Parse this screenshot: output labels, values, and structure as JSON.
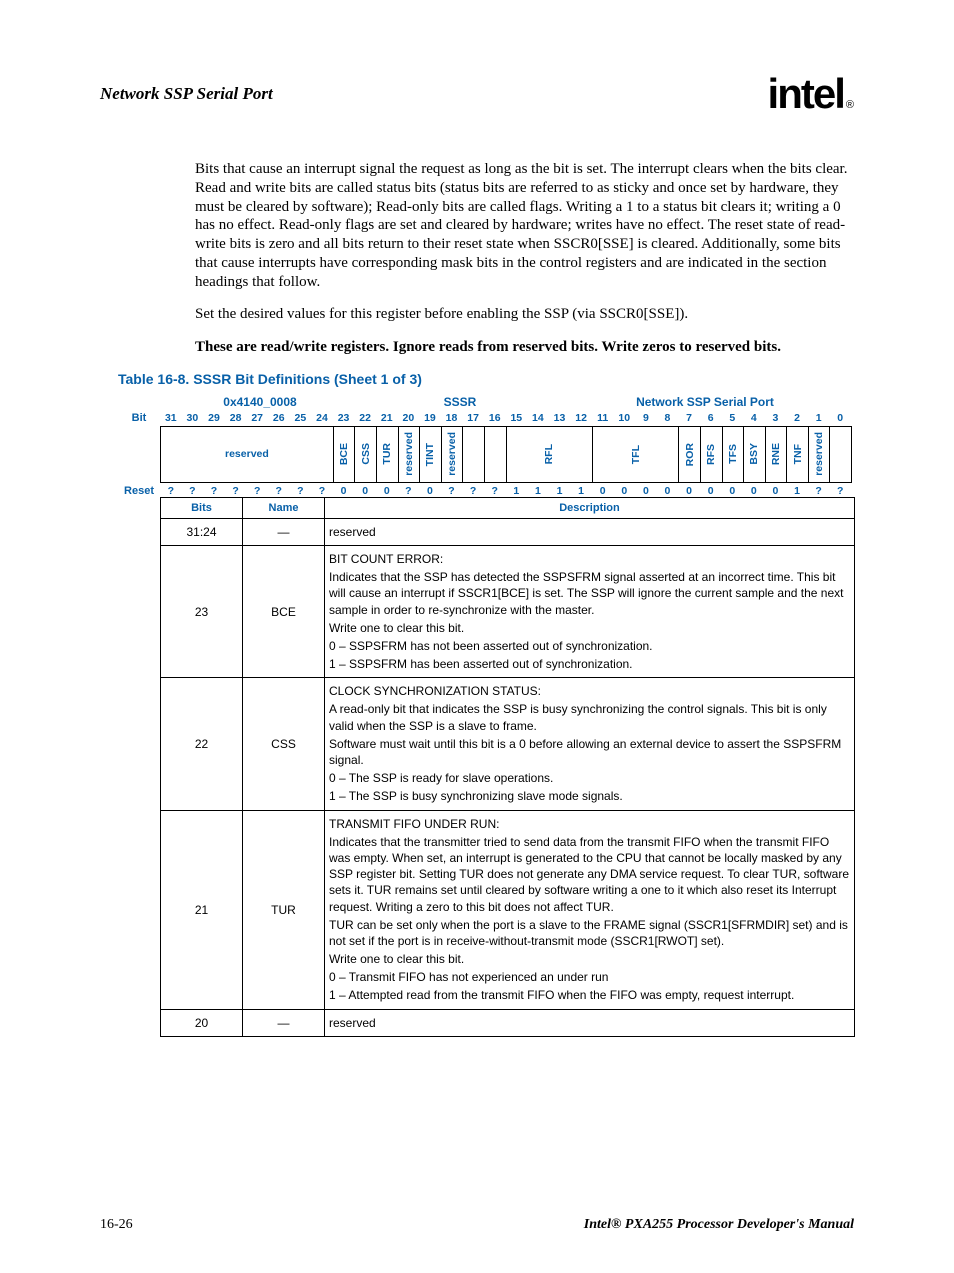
{
  "header": {
    "section_title": "Network SSP Serial Port",
    "logo_text": "intel",
    "registered": "®"
  },
  "paragraphs": {
    "p1": "Bits that cause an interrupt signal the request as long as the bit is set. The interrupt clears when the bits clear. Read and write bits are called status bits (status bits are referred to as sticky and once set by hardware, they must be cleared by software); Read-only bits are called flags. Writing a 1 to a status bit clears it; writing a 0 has no effect. Read-only flags are set and cleared by hardware; writes have no effect. The reset state of read-write bits is zero and all bits return to their reset state when SSCR0[SSE] is cleared. Additionally, some bits that cause interrupts have corresponding mask bits in the control registers and are indicated in the section headings that follow.",
    "p2": "Set the desired values for this register before enabling the SSP (via SSCR0[SSE]).",
    "p3": "These are read/write registers. Ignore reads from reserved bits. Write zeros to reserved bits."
  },
  "table_caption": "Table 16-8. SSSR Bit Definitions (Sheet 1 of 3)",
  "register": {
    "address": "0x4140_0008",
    "name": "SSSR",
    "module": "Network SSP Serial Port",
    "bit_label": "Bit",
    "reset_label": "Reset",
    "bit_numbers": [
      "31",
      "30",
      "29",
      "28",
      "27",
      "26",
      "25",
      "24",
      "23",
      "22",
      "21",
      "20",
      "19",
      "18",
      "17",
      "16",
      "15",
      "14",
      "13",
      "12",
      "11",
      "10",
      "9",
      "8",
      "7",
      "6",
      "5",
      "4",
      "3",
      "2",
      "1",
      "0"
    ],
    "fields": [
      {
        "label": "reserved",
        "span": 8,
        "orient": "h"
      },
      {
        "label": "BCE",
        "span": 1,
        "orient": "v"
      },
      {
        "label": "CSS",
        "span": 1,
        "orient": "v"
      },
      {
        "label": "TUR",
        "span": 1,
        "orient": "v"
      },
      {
        "label": "reserved",
        "span": 1,
        "orient": "v"
      },
      {
        "label": "TINT",
        "span": 1,
        "orient": "v"
      },
      {
        "label": "reserved",
        "span": 1,
        "orient": "v"
      },
      {
        "label": "",
        "span": 1,
        "orient": "v"
      },
      {
        "label": "",
        "span": 1,
        "orient": "v"
      },
      {
        "label": "RFL",
        "span": 4,
        "orient": "v"
      },
      {
        "label": "TFL",
        "span": 4,
        "orient": "v"
      },
      {
        "label": "ROR",
        "span": 1,
        "orient": "v"
      },
      {
        "label": "RFS",
        "span": 1,
        "orient": "v"
      },
      {
        "label": "TFS",
        "span": 1,
        "orient": "v"
      },
      {
        "label": "BSY",
        "span": 1,
        "orient": "v"
      },
      {
        "label": "RNE",
        "span": 1,
        "orient": "v"
      },
      {
        "label": "TNF",
        "span": 1,
        "orient": "v"
      },
      {
        "label": "reserved",
        "span": 1,
        "orient": "v"
      },
      {
        "label": "",
        "span": 1,
        "orient": "v"
      }
    ],
    "reset_values": [
      "?",
      "?",
      "?",
      "?",
      "?",
      "?",
      "?",
      "?",
      "0",
      "0",
      "0",
      "?",
      "0",
      "?",
      "?",
      "?",
      "1",
      "1",
      "1",
      "1",
      "0",
      "0",
      "0",
      "0",
      "0",
      "0",
      "0",
      "0",
      "0",
      "1",
      "?",
      "?"
    ]
  },
  "desc_table": {
    "headers": {
      "bits": "Bits",
      "name": "Name",
      "desc": "Description"
    },
    "rows": [
      {
        "bits": "31:24",
        "name": "—",
        "desc": [
          {
            "t": "reserved"
          }
        ]
      },
      {
        "bits": "23",
        "name": "BCE",
        "desc": [
          {
            "t": "BIT COUNT ERROR:"
          },
          {
            "t": "Indicates that the SSP has detected the SSPSFRM signal asserted at an incorrect time. This bit will cause an interrupt if SSCR1[BCE] is set. The SSP will ignore the current sample and the next sample in order to re-synchronize with the master."
          },
          {
            "t": "Write one to clear this bit."
          },
          {
            "t": "0 –  SSPSFRM has not been asserted out of synchronization."
          },
          {
            "t": "1 –  SSPSFRM has been asserted out of synchronization."
          }
        ]
      },
      {
        "bits": "22",
        "name": "CSS",
        "desc": [
          {
            "t": "CLOCK SYNCHRONIZATION STATUS:"
          },
          {
            "t": "A read-only bit that indicates the SSP is busy synchronizing the control signals. This bit is only valid when the SSP is a slave to frame."
          },
          {
            "t": "Software must wait until this bit is a 0 before allowing an external device to assert the SSPSFRM signal."
          },
          {
            "t": "0 –  The SSP is ready for slave operations."
          },
          {
            "t": "1 –  The SSP is busy synchronizing slave mode signals."
          }
        ]
      },
      {
        "bits": "21",
        "name": "TUR",
        "desc": [
          {
            "t": "TRANSMIT FIFO UNDER RUN:"
          },
          {
            "t": "Indicates that the transmitter tried to send data from the transmit FIFO when the transmit FIFO was empty. When set, an interrupt is generated to the CPU that cannot be locally masked by any SSP register bit. Setting TUR does not generate any DMA service request. To clear TUR, software sets it. TUR remains set until cleared by software writing a one to it which also reset its Interrupt request. Writing a zero to this bit does not affect TUR."
          },
          {
            "t": "TUR can be set only when the port is a slave to the FRAME signal (SSCR1[SFRMDIR] set) and is not set if the port is in receive-without-transmit mode (SSCR1[RWOT] set)."
          },
          {
            "t": "Write one to clear this bit."
          },
          {
            "t": "0 –  Transmit FIFO has not experienced an under run"
          },
          {
            "t": "1 –  Attempted read from the transmit FIFO when the FIFO was empty, request interrupt."
          }
        ]
      },
      {
        "bits": "20",
        "name": "—",
        "desc": [
          {
            "t": "reserved"
          }
        ]
      }
    ]
  },
  "footer": {
    "page": "16-26",
    "doc": "Intel® PXA255 Processor Developer's Manual"
  },
  "colors": {
    "accent": "#0860a8",
    "text": "#000000",
    "bg": "#ffffff"
  }
}
